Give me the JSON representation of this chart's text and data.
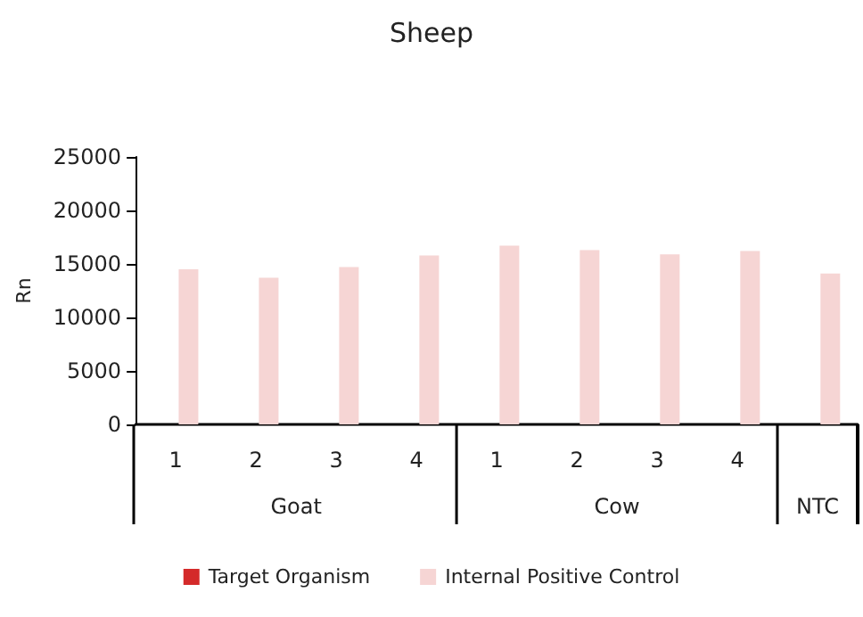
{
  "chart_data": {
    "type": "bar",
    "title": "Sheep",
    "ylabel": "Rn",
    "categories": [
      "1",
      "2",
      "3",
      "4",
      "1",
      "2",
      "3",
      "4",
      null
    ],
    "series": [
      {
        "name": "Target Organism",
        "color": "#d42a2a",
        "values": [
          0,
          0,
          0,
          0,
          0,
          0,
          0,
          0,
          0
        ]
      },
      {
        "name": "Internal Positive Control",
        "color": "#f6d5d4",
        "values": [
          14500,
          13700,
          14700,
          15800,
          16700,
          16300,
          15900,
          16200,
          14100
        ]
      }
    ],
    "ylim": [
      0,
      25000
    ],
    "yticks": [
      0,
      5000,
      10000,
      15000,
      20000,
      25000
    ],
    "annotations": [
      "Goat",
      "Cow",
      "NTC"
    ],
    "grid": false,
    "legend": "bottom"
  }
}
